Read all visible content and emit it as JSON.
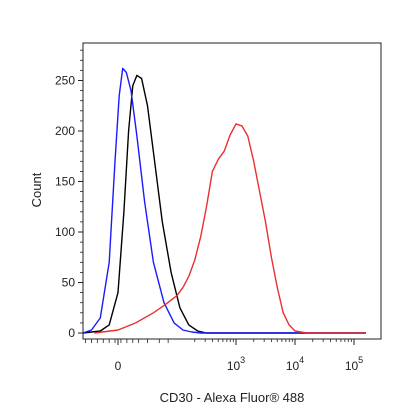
{
  "chart_data": {
    "type": "line",
    "title": "",
    "xlabel": "CD30 - Alexa Fluor® 488",
    "ylabel": "Count",
    "ylim": [
      0,
      300
    ],
    "yticks": [
      0,
      50,
      100,
      150,
      200,
      250
    ],
    "y_tick_labels": [
      "0",
      "50",
      "100",
      "150",
      "200",
      "250"
    ],
    "xscale": "biexponential",
    "x_tick_labels": [
      {
        "base": "0",
        "exp": ""
      },
      {
        "base": "10",
        "exp": "3"
      },
      {
        "base": "10",
        "exp": "4"
      },
      {
        "base": "10",
        "exp": "5"
      }
    ],
    "grid": false,
    "legend": "none",
    "series": [
      {
        "color": "#000000",
        "x": [
          -0.6,
          -0.3,
          -0.15,
          0.0,
          0.1,
          0.18,
          0.25,
          0.32,
          0.4,
          0.5,
          0.62,
          0.75,
          0.9,
          1.05,
          1.2,
          1.35,
          1.5,
          4.2
        ],
        "y": [
          0,
          2,
          8,
          40,
          120,
          200,
          245,
          255,
          252,
          225,
          170,
          110,
          60,
          25,
          8,
          2,
          0,
          0
        ]
      },
      {
        "color": "#1a1aff",
        "x": [
          -0.7,
          -0.45,
          -0.3,
          -0.15,
          -0.05,
          0.02,
          0.08,
          0.14,
          0.22,
          0.32,
          0.45,
          0.6,
          0.78,
          0.95,
          1.1,
          1.25,
          1.4,
          4.2
        ],
        "y": [
          0,
          3,
          15,
          70,
          170,
          235,
          262,
          258,
          240,
          195,
          130,
          70,
          30,
          10,
          3,
          1,
          0,
          0
        ]
      },
      {
        "color": "#e8312f",
        "x": [
          -0.4,
          0.0,
          0.3,
          0.6,
          0.8,
          1.0,
          1.1,
          1.2,
          1.3,
          1.4,
          1.5,
          1.6,
          1.7,
          1.8,
          1.9,
          2.0,
          2.1,
          2.2,
          2.3,
          2.4,
          2.5,
          2.6,
          2.7,
          2.8,
          2.9,
          3.0,
          3.2,
          4.2
        ],
        "y": [
          0,
          3,
          10,
          20,
          28,
          37,
          45,
          56,
          72,
          95,
          125,
          160,
          172,
          180,
          196,
          207,
          205,
          195,
          170,
          140,
          110,
          75,
          45,
          20,
          8,
          2,
          0,
          0
        ]
      }
    ]
  }
}
